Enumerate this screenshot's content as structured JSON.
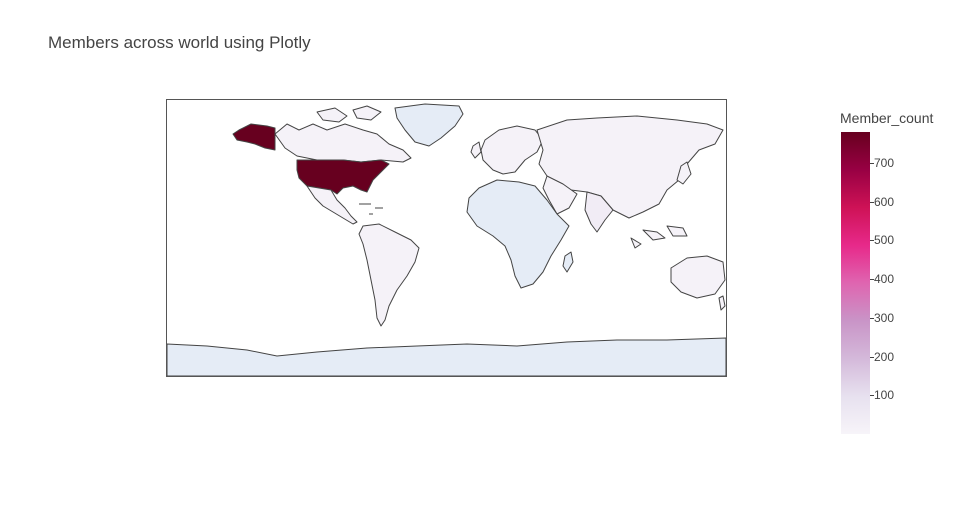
{
  "title": "Members across world using Plotly",
  "colorbar": {
    "title": "Member_count",
    "min": 0,
    "max": 780,
    "ticks": [
      100,
      200,
      300,
      400,
      500,
      600,
      700
    ],
    "colorscale": [
      "#f7f4f9",
      "#e7e1ef",
      "#d4b9da",
      "#c994c7",
      "#df65b0",
      "#e7298a",
      "#ce1256",
      "#980043",
      "#67001f"
    ]
  },
  "map": {
    "projection": "equirectangular",
    "ocean_color": "#ffffff",
    "land_color": "#e5ecf6",
    "border_color": "#444444",
    "highlighted": [
      {
        "region": "United States",
        "value": 780
      },
      {
        "region": "Alaska",
        "value": 780
      },
      {
        "region": "Canada",
        "value": 20
      },
      {
        "region": "South America",
        "value": 15
      },
      {
        "region": "Europe",
        "value": 15
      },
      {
        "region": "Asia",
        "value": 12
      },
      {
        "region": "India",
        "value": 40
      },
      {
        "region": "Australia",
        "value": 10
      }
    ]
  }
}
